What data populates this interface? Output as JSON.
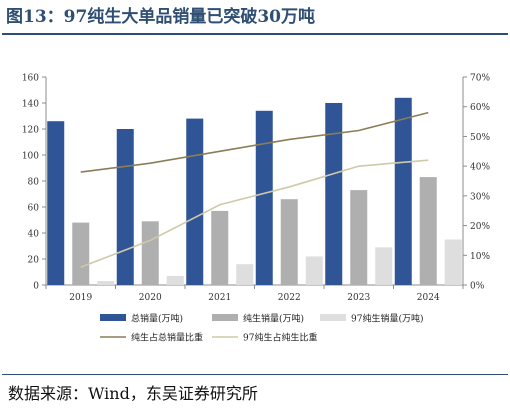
{
  "figure": {
    "title": "图13：97纯生大单品销量已突破30万吨",
    "source": "数据来源：Wind，东吴证券研究所"
  },
  "chart_data": {
    "type": "bar",
    "categories": [
      "2019",
      "2020",
      "2021",
      "2022",
      "2023",
      "2024"
    ],
    "series": [
      {
        "name": "总销量(万吨)",
        "kind": "bar",
        "axis": "left",
        "color": "#2f5597",
        "values": [
          126,
          120,
          128,
          134,
          140,
          144
        ]
      },
      {
        "name": "纯生销量(万吨)",
        "kind": "bar",
        "axis": "left",
        "color": "#afafaf",
        "values": [
          48,
          49,
          57,
          66,
          73,
          83
        ]
      },
      {
        "name": "97纯生销量(万吨)",
        "kind": "bar",
        "axis": "left",
        "color": "#dedede",
        "values": [
          3,
          7,
          16,
          22,
          29,
          35
        ]
      },
      {
        "name": "纯生占总销量比重",
        "kind": "line",
        "axis": "right",
        "color": "#8c7d57",
        "values": [
          0.38,
          0.41,
          0.45,
          0.49,
          0.52,
          0.58
        ]
      },
      {
        "name": "97纯生占纯生比重",
        "kind": "line",
        "axis": "right",
        "color": "#cfc9a8",
        "values": [
          0.06,
          0.15,
          0.27,
          0.33,
          0.4,
          0.42
        ]
      }
    ],
    "y_left": {
      "range": [
        0,
        160
      ],
      "ticks": [
        "0",
        "20",
        "40",
        "60",
        "80",
        "100",
        "120",
        "140",
        "160"
      ]
    },
    "y_right": {
      "range": [
        0,
        0.7
      ],
      "ticks": [
        "0%",
        "10%",
        "20%",
        "30%",
        "40%",
        "50%",
        "60%",
        "70%"
      ]
    },
    "grid": false,
    "legend_position": "bottom"
  }
}
